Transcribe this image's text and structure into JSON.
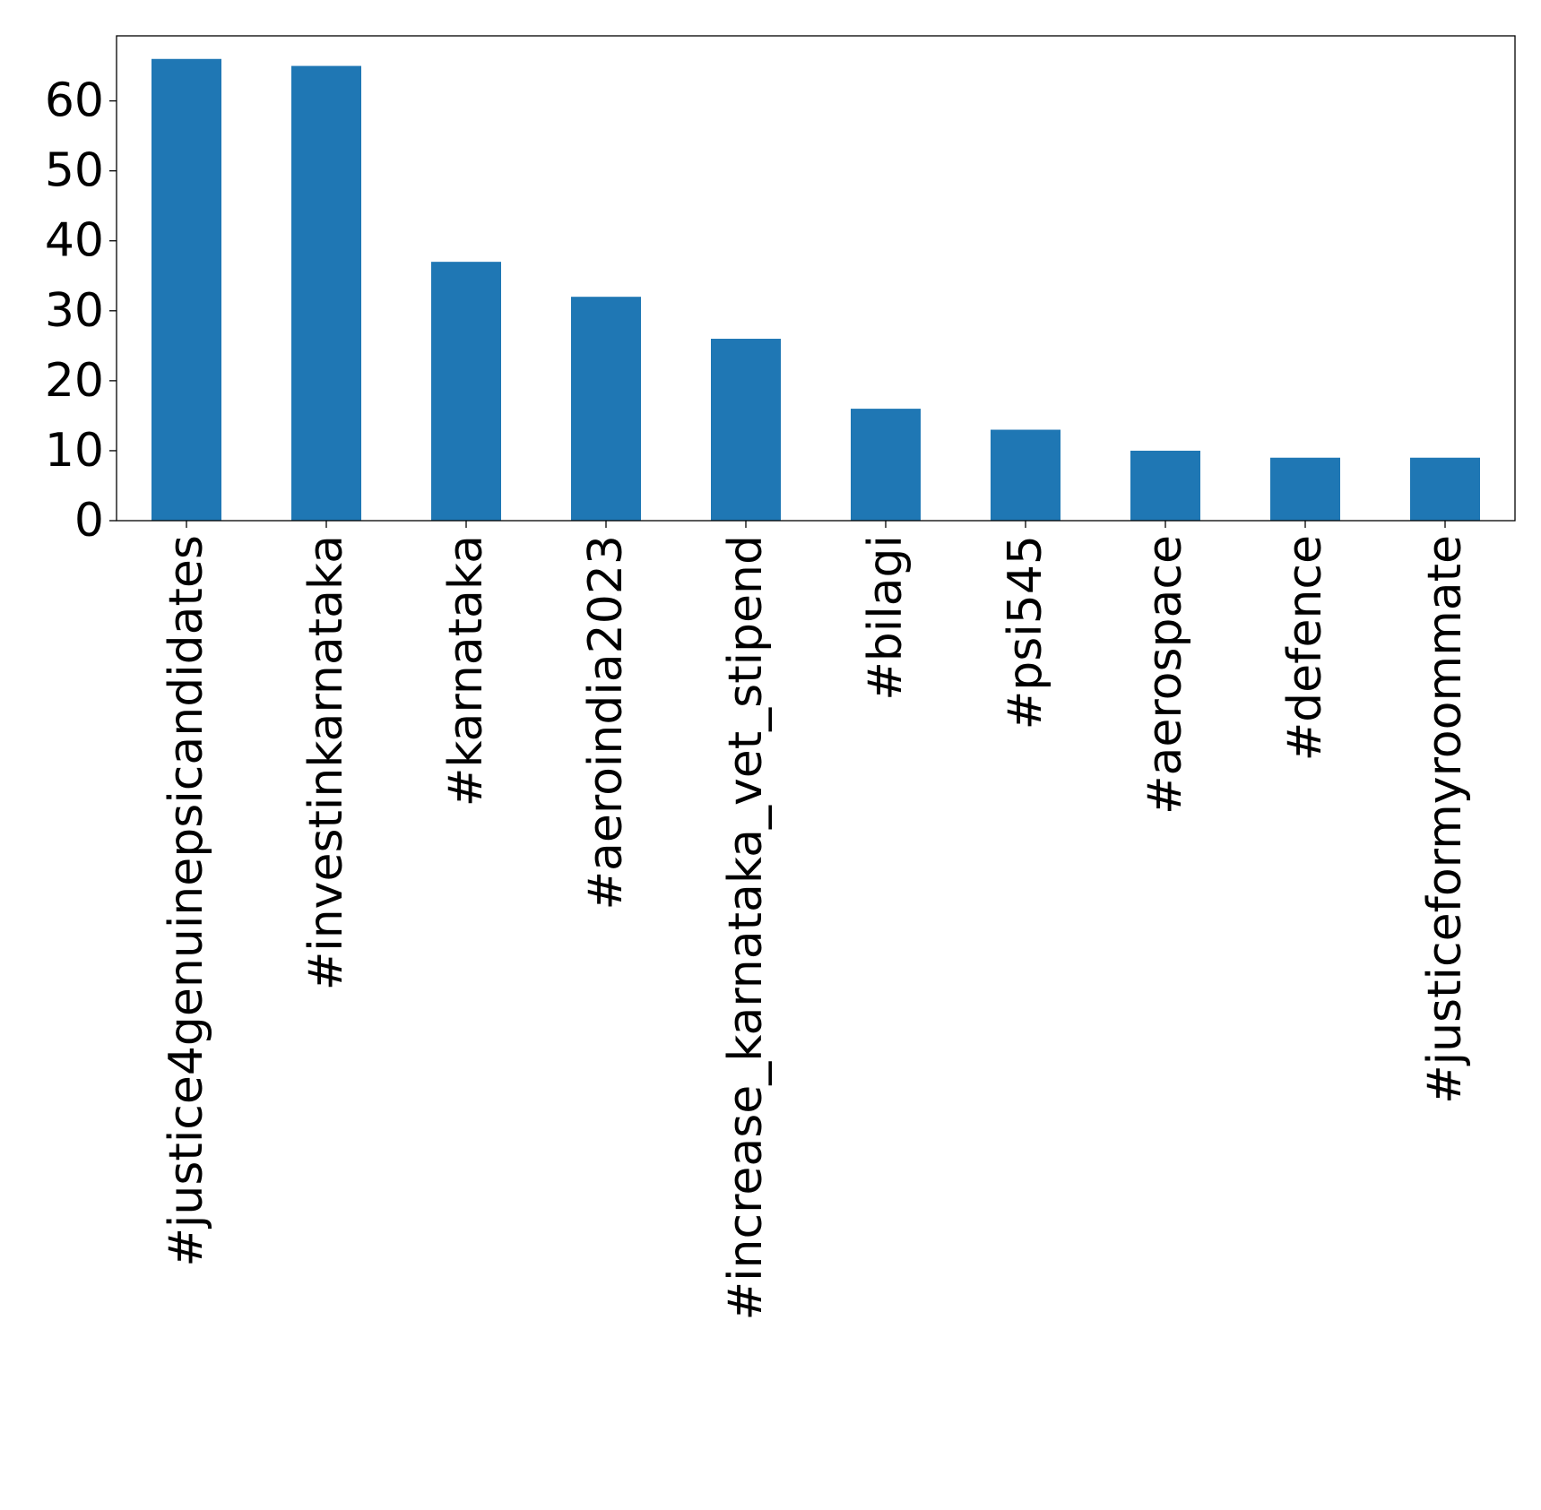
{
  "chart_data": {
    "type": "bar",
    "title": "",
    "xlabel": "",
    "ylabel": "",
    "categories": [
      "#justice4genuinepsicandidates",
      "#investinkarnataka",
      "#karnataka",
      "#aeroindia2023",
      "#increase_karnataka_vet_stipend",
      "#bilagi",
      "#psi545",
      "#aerospace",
      "#defence",
      "#justiceformyroommate"
    ],
    "values": [
      66,
      65,
      37,
      32,
      26,
      16,
      13,
      10,
      9,
      9
    ],
    "ylim": [
      0,
      69.3
    ],
    "yticks": [
      0,
      10,
      20,
      30,
      40,
      50,
      60
    ],
    "grid": false,
    "legend": "none",
    "bar_color": "#1f77b4"
  }
}
